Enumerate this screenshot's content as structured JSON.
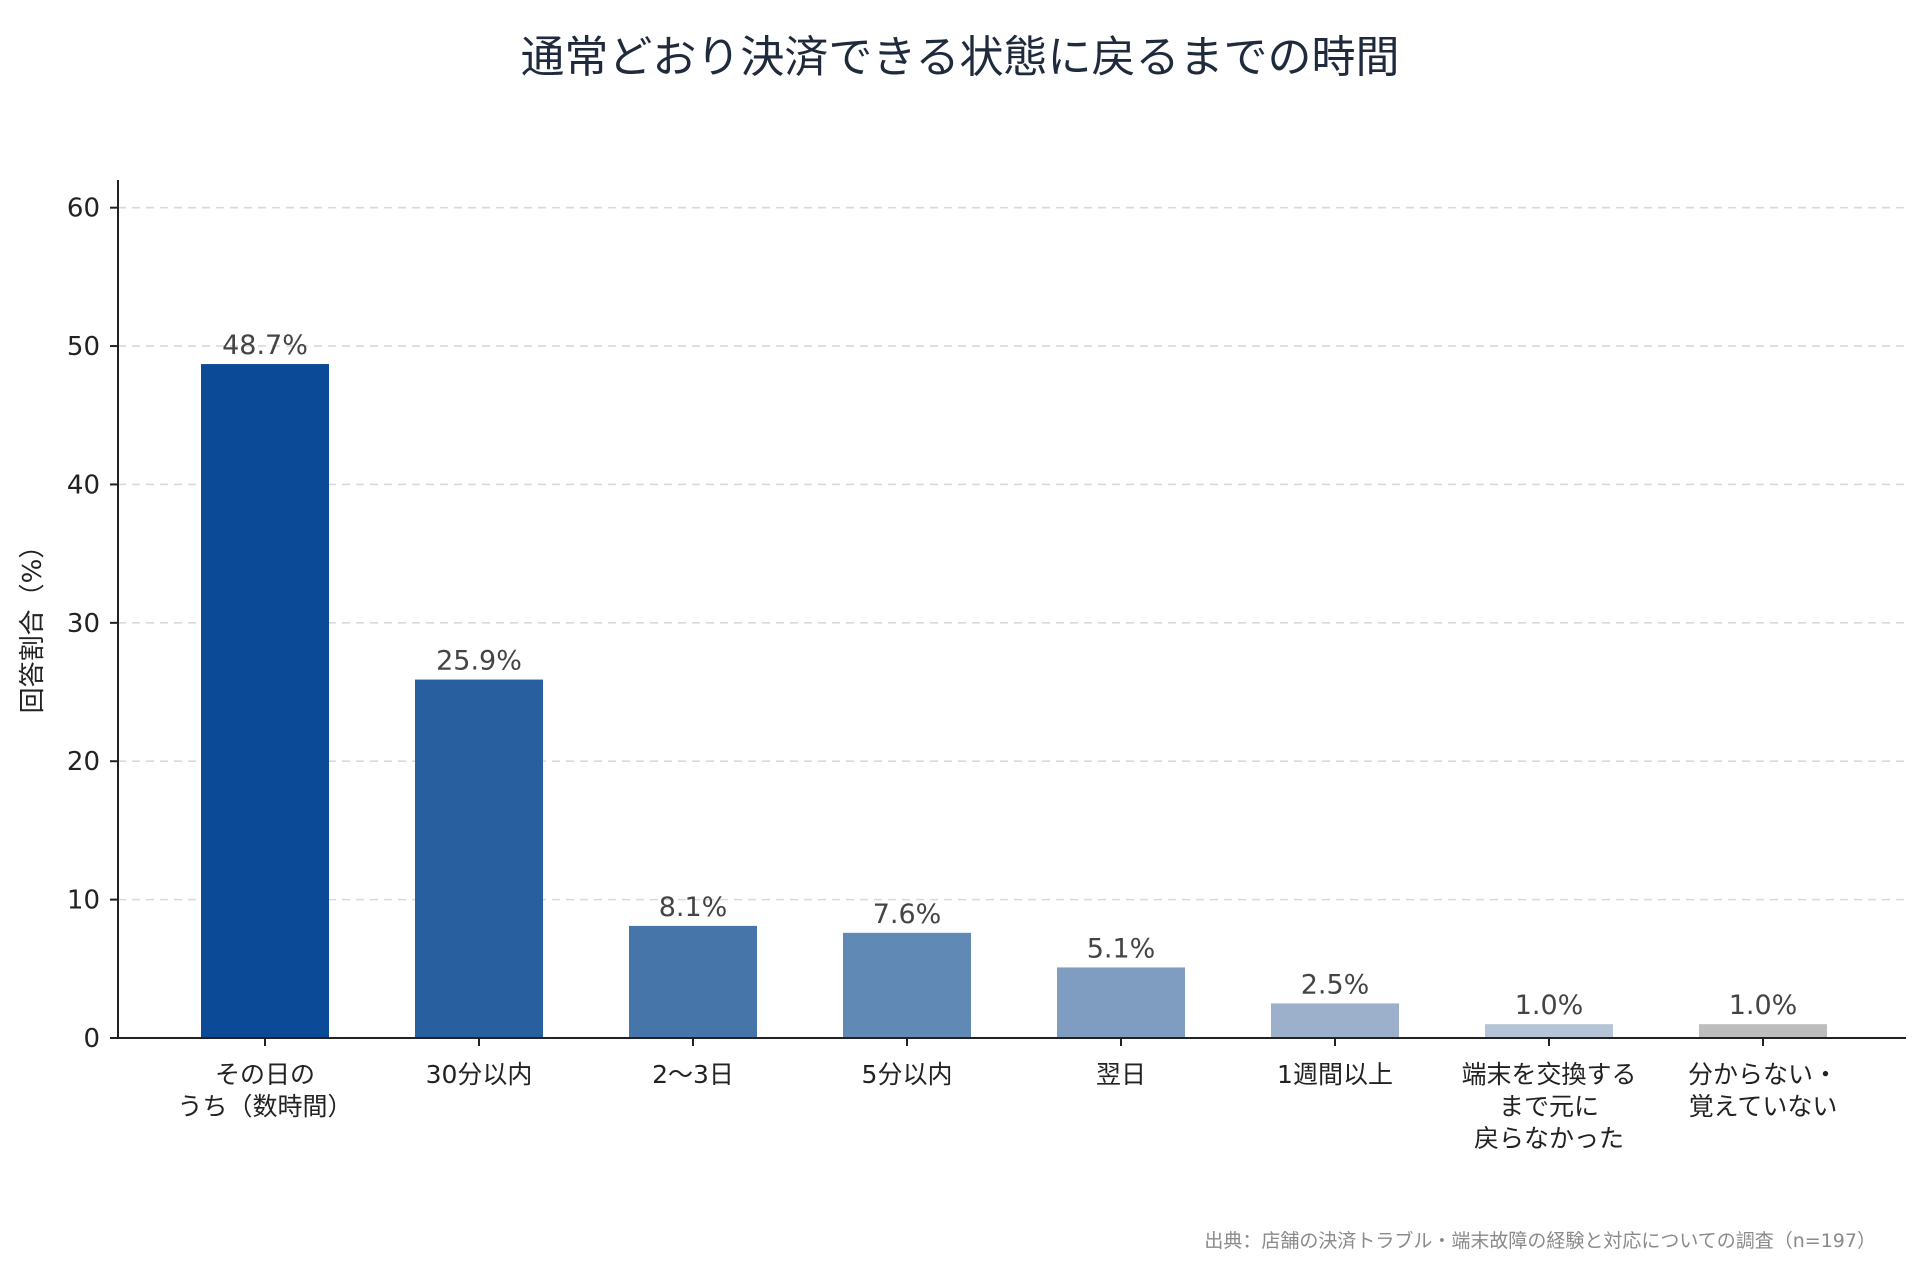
{
  "chart_data": {
    "type": "bar",
    "title": "通常どおり決済できる状態に戻るまでの時間",
    "ylabel": "回答割合（%）",
    "xlabel": "",
    "ylim": [
      0,
      62
    ],
    "yticks": [
      0,
      10,
      20,
      30,
      40,
      50,
      60
    ],
    "grid": true,
    "categories": [
      [
        "その日の",
        "うち（数時間）"
      ],
      [
        "30分以内"
      ],
      [
        "2〜3日"
      ],
      [
        "5分以内"
      ],
      [
        "翌日"
      ],
      [
        "1週間以上"
      ],
      [
        "端末を交換する",
        "まで元に",
        "戻らなかった"
      ],
      [
        "分からない・",
        "覚えていない"
      ]
    ],
    "values": [
      48.7,
      25.9,
      8.1,
      7.6,
      5.1,
      2.5,
      1.0,
      1.0
    ],
    "labels": [
      "48.7%",
      "25.9%",
      "8.1%",
      "7.6%",
      "5.1%",
      "2.5%",
      "1.0%",
      "1.0%"
    ],
    "colors": [
      "#0b4a96",
      "#285f9f",
      "#4675aa",
      "#6189b5",
      "#7f9dc0",
      "#9cb0cb",
      "#b5c4d6",
      "#bdbdbd"
    ],
    "source": "出典：店舗の決済トラブル・端末故障の経験と対応についての調査（n=197）"
  }
}
